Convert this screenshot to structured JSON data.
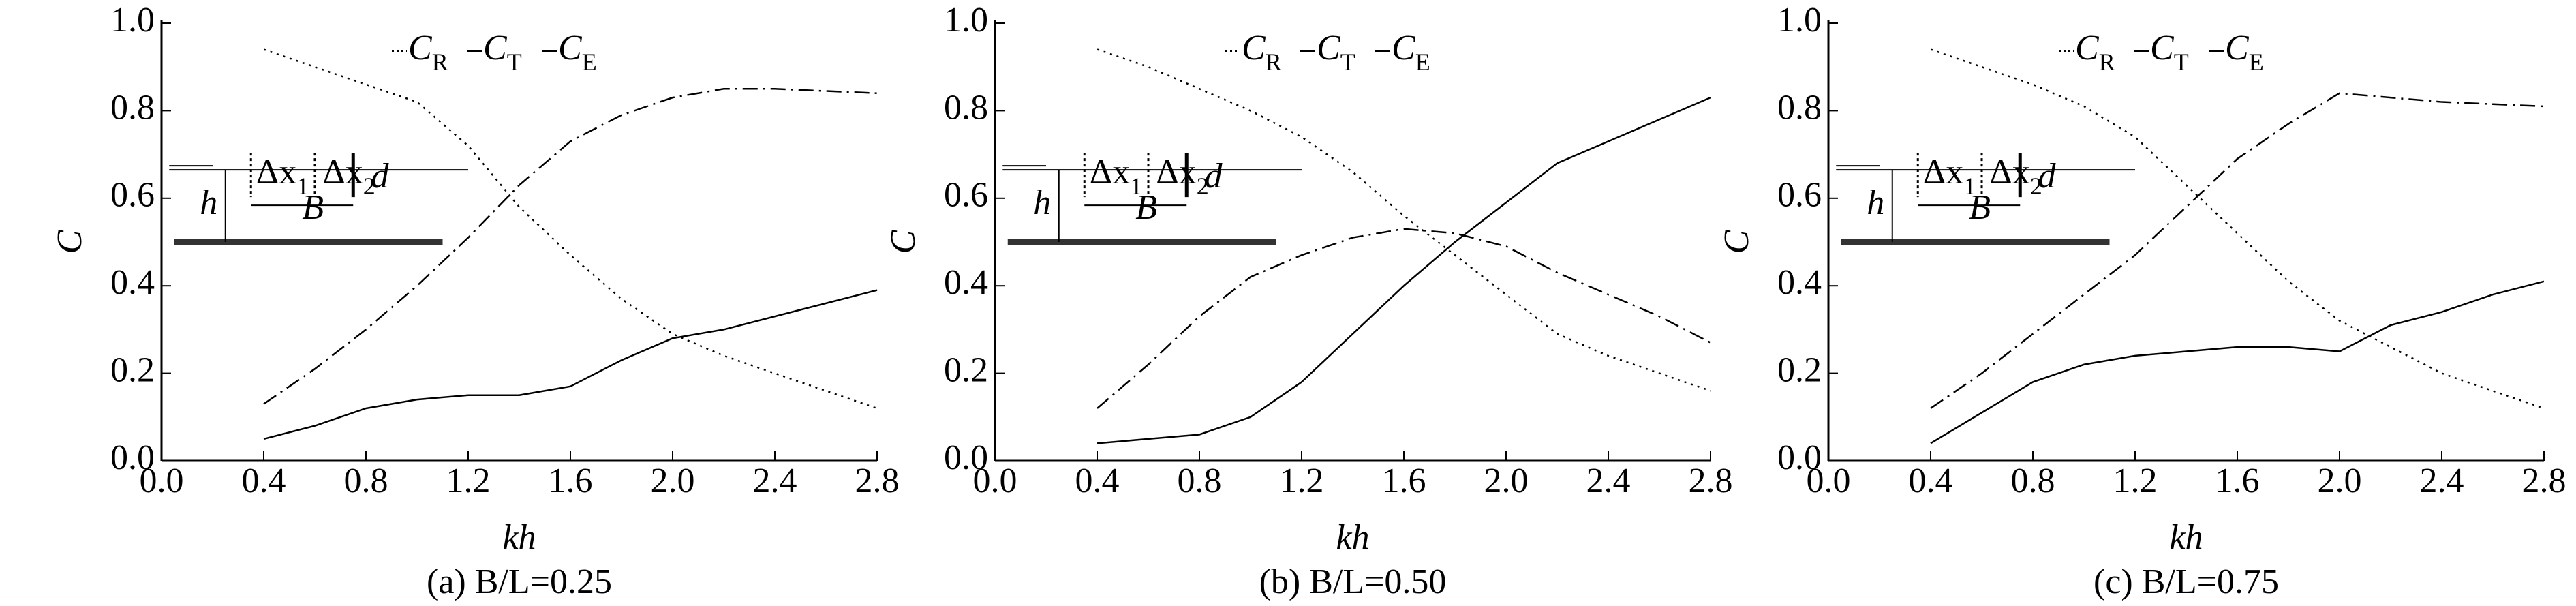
{
  "chart_data": [
    {
      "type": "line",
      "caption": "(a) B/L=0.25",
      "xlabel": "kh",
      "ylabel": "C",
      "x": [
        0.4,
        0.6,
        0.8,
        1.0,
        1.2,
        1.4,
        1.6,
        1.8,
        2.0,
        2.2,
        2.4,
        2.6,
        2.8
      ],
      "xlim": [
        0,
        2.8
      ],
      "ylim": [
        0,
        1
      ],
      "xticks": [
        {
          "value": 0,
          "label": "0.0"
        },
        0.4,
        0.8,
        {
          "value": 1.2,
          "label": "1.2"
        },
        1.6,
        {
          "value": 2,
          "label": "2.0"
        },
        2.4,
        2.8
      ],
      "yticks": [
        {
          "value": 0,
          "label": "0.0"
        },
        0.2,
        0.4,
        0.6,
        0.8,
        {
          "value": 1,
          "label": "1.0"
        }
      ],
      "annotations": [
        "h",
        "Δx1",
        "Δx2",
        "d",
        "B"
      ],
      "series": [
        {
          "name": "CR",
          "color": "#000",
          "style": "dotted",
          "values": [
            0.94,
            0.9,
            0.86,
            0.82,
            0.72,
            0.58,
            0.47,
            0.37,
            0.29,
            0.24,
            0.2,
            0.16,
            0.12
          ]
        },
        {
          "name": "CT",
          "color": "#000",
          "style": "dashdot",
          "values": [
            0.13,
            0.21,
            0.3,
            0.4,
            0.51,
            0.63,
            0.73,
            0.79,
            0.83,
            0.85,
            0.85,
            0.845,
            0.84
          ]
        },
        {
          "name": "CE",
          "color": "#000",
          "style": "solid",
          "values": [
            0.05,
            0.08,
            0.12,
            0.14,
            0.15,
            0.15,
            0.17,
            0.23,
            0.28,
            0.3,
            0.33,
            0.36,
            0.39
          ]
        }
      ]
    },
    {
      "type": "line",
      "caption": "(b) B/L=0.50",
      "xlabel": "kh",
      "ylabel": "C",
      "x": [
        0.4,
        0.6,
        0.8,
        1.0,
        1.2,
        1.4,
        1.6,
        1.8,
        2.0,
        2.2,
        2.4,
        2.6,
        2.8
      ],
      "xlim": [
        0,
        2.8
      ],
      "ylim": [
        0,
        1
      ],
      "xticks": [
        {
          "value": 0,
          "label": "0.0"
        },
        0.4,
        0.8,
        {
          "value": 1.2,
          "label": "1.2"
        },
        1.6,
        {
          "value": 2,
          "label": "2.0"
        },
        2.4,
        2.8
      ],
      "yticks": [
        {
          "value": 0,
          "label": "0.0"
        },
        0.2,
        0.4,
        0.6,
        0.8,
        {
          "value": 1,
          "label": "1.0"
        }
      ],
      "annotations": [
        "h",
        "Δx1",
        "Δx2",
        "d",
        "B"
      ],
      "series": [
        {
          "name": "CR",
          "color": "#000",
          "style": "dotted",
          "values": [
            0.94,
            0.9,
            0.85,
            0.8,
            0.74,
            0.66,
            0.56,
            0.47,
            0.38,
            0.29,
            0.24,
            0.2,
            0.16
          ]
        },
        {
          "name": "CT",
          "color": "#000",
          "style": "dashdot",
          "values": [
            0.12,
            0.22,
            0.33,
            0.42,
            0.47,
            0.51,
            0.53,
            0.52,
            0.49,
            0.43,
            0.38,
            0.33,
            0.27
          ]
        },
        {
          "name": "CE",
          "color": "#000",
          "style": "solid",
          "values": [
            0.04,
            0.05,
            0.06,
            0.1,
            0.18,
            0.29,
            0.4,
            0.5,
            0.59,
            0.68,
            0.73,
            0.78,
            0.83
          ]
        }
      ]
    },
    {
      "type": "line",
      "caption": "(c) B/L=0.75",
      "xlabel": "kh",
      "ylabel": "C",
      "x": [
        0.4,
        0.6,
        0.8,
        1.0,
        1.2,
        1.4,
        1.6,
        1.8,
        2.0,
        2.2,
        2.4,
        2.6,
        2.8
      ],
      "xlim": [
        0,
        2.8
      ],
      "ylim": [
        0,
        1
      ],
      "xticks": [
        {
          "value": 0,
          "label": "0.0"
        },
        0.4,
        0.8,
        {
          "value": 1.2,
          "label": "1.2"
        },
        1.6,
        {
          "value": 2,
          "label": "2.0"
        },
        2.4,
        2.8
      ],
      "yticks": [
        {
          "value": 0,
          "label": "0.0"
        },
        0.2,
        0.4,
        0.6,
        0.8,
        {
          "value": 1,
          "label": "1.0"
        }
      ],
      "annotations": [
        "h",
        "Δx1",
        "Δx2",
        "d",
        "B"
      ],
      "series": [
        {
          "name": "CR",
          "color": "#000",
          "style": "dotted",
          "values": [
            0.94,
            0.9,
            0.86,
            0.81,
            0.74,
            0.63,
            0.52,
            0.41,
            0.32,
            0.26,
            0.2,
            0.16,
            0.12
          ]
        },
        {
          "name": "CT",
          "color": "#000",
          "style": "dashdot",
          "values": [
            0.12,
            0.2,
            0.29,
            0.38,
            0.47,
            0.58,
            0.69,
            0.77,
            0.84,
            0.83,
            0.82,
            0.815,
            0.81
          ]
        },
        {
          "name": "CE",
          "color": "#000",
          "style": "solid",
          "values": [
            0.04,
            0.11,
            0.18,
            0.22,
            0.24,
            0.25,
            0.26,
            0.26,
            0.25,
            0.31,
            0.34,
            0.38,
            0.41
          ]
        }
      ]
    }
  ]
}
